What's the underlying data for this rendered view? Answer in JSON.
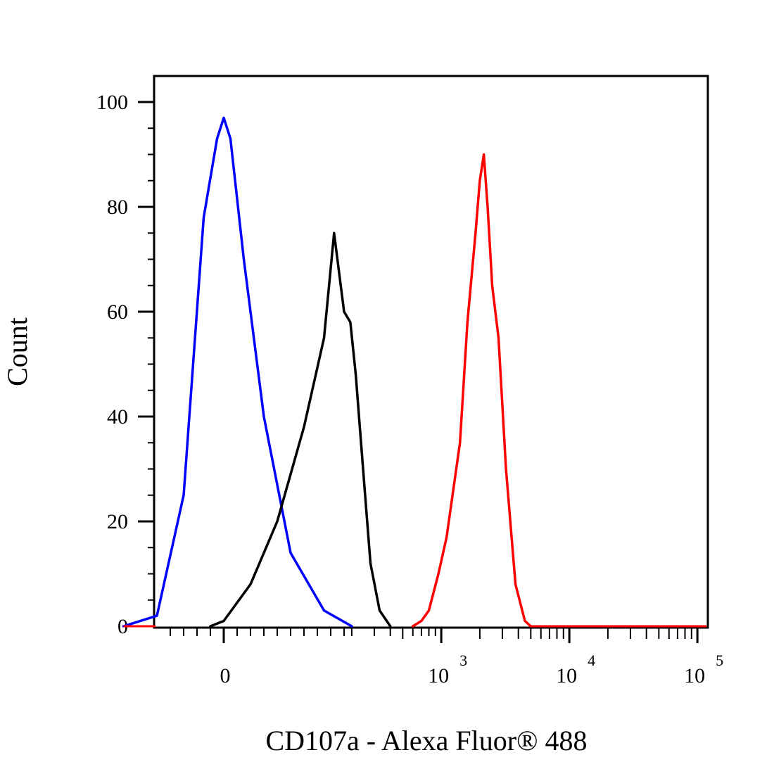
{
  "chart_data": {
    "type": "line",
    "xlabel": "CD107a - Alexa Fluor® 488",
    "ylabel": "Count",
    "ylim": [
      0,
      100
    ],
    "yticks": [
      "0",
      "20",
      "40",
      "60",
      "80",
      "100"
    ],
    "x_scale": "biexponential",
    "xticks": [
      {
        "base": "0",
        "exp": ""
      },
      {
        "base": "10",
        "exp": "3"
      },
      {
        "base": "10",
        "exp": "4"
      },
      {
        "base": "10",
        "exp": "5"
      }
    ],
    "grid": false,
    "series": [
      {
        "color": "#0000ff",
        "x": [
          -150,
          -100,
          -60,
          -30,
          -10,
          0,
          10,
          30,
          60,
          100,
          150,
          200
        ],
        "values": [
          0,
          2,
          25,
          78,
          93,
          97,
          93,
          70,
          40,
          14,
          3,
          0
        ]
      },
      {
        "color": "#000000",
        "x": [
          -20,
          0,
          40,
          80,
          120,
          150,
          165,
          180,
          195,
          215,
          245,
          280,
          330,
          400
        ],
        "values": [
          0,
          1,
          8,
          20,
          38,
          55,
          75,
          60,
          58,
          48,
          30,
          12,
          3,
          0
        ]
      },
      {
        "color": "#ff0000",
        "x": [
          600,
          700,
          800,
          950,
          1100,
          1400,
          1600,
          1850,
          2000,
          2150,
          2300,
          2500,
          2800,
          3200,
          3800,
          4500,
          5000
        ],
        "values": [
          0,
          1,
          3,
          10,
          17,
          35,
          58,
          75,
          85,
          90,
          80,
          65,
          55,
          30,
          8,
          1,
          0
        ]
      }
    ]
  }
}
